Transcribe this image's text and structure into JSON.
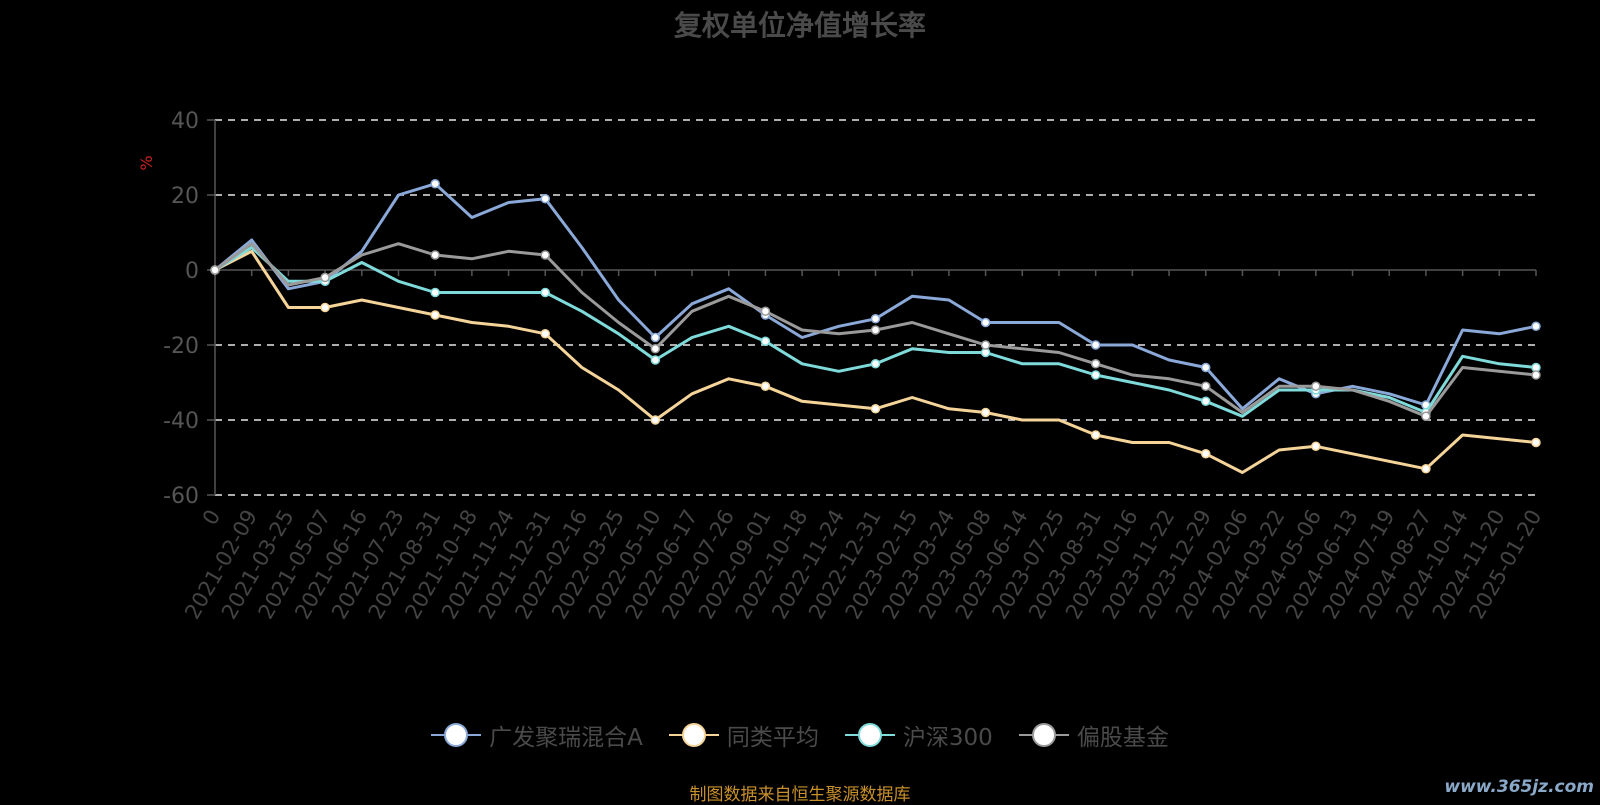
{
  "chart_data": {
    "type": "line",
    "title": "复权单位净值增长率",
    "ylabel": "%",
    "ylim": [
      -60,
      40
    ],
    "yticks": [
      40,
      20,
      0,
      -20,
      -40,
      -60
    ],
    "x": [
      "0",
      "2021-02-09",
      "2021-03-25",
      "2021-05-07",
      "2021-06-16",
      "2021-07-23",
      "2021-08-31",
      "2021-10-18",
      "2021-11-24",
      "2021-12-31",
      "2022-02-16",
      "2022-03-25",
      "2022-05-10",
      "2022-06-17",
      "2022-07-26",
      "2022-09-01",
      "2022-10-18",
      "2022-11-24",
      "2022-12-31",
      "2023-02-15",
      "2023-03-24",
      "2023-05-08",
      "2023-06-14",
      "2023-07-25",
      "2023-08-31",
      "2023-10-16",
      "2023-11-22",
      "2023-12-29",
      "2024-02-06",
      "2024-03-22",
      "2024-05-06",
      "2024-06-13",
      "2024-07-19",
      "2024-08-27",
      "2024-10-14",
      "2024-11-20",
      "2025-01-20"
    ],
    "grid": true,
    "legend_position": "bottom",
    "series": [
      {
        "name": "广发聚瑞混合A",
        "color": "#8aa8d8",
        "values": [
          0,
          8,
          -5,
          -3,
          5,
          20,
          23,
          14,
          18,
          19,
          6,
          -8,
          -18,
          -9,
          -5,
          -12,
          -18,
          -15,
          -13,
          -7,
          -8,
          -14,
          -14,
          -14,
          -20,
          -20,
          -24,
          -26,
          -37,
          -29,
          -33,
          -31,
          -33,
          -36,
          -16,
          -17,
          -15
        ]
      },
      {
        "name": "同类平均",
        "color": "#f5d49a",
        "values": [
          0,
          5,
          -10,
          -10,
          -8,
          -10,
          -12,
          -14,
          -15,
          -17,
          -26,
          -32,
          -40,
          -33,
          -29,
          -31,
          -35,
          -36,
          -37,
          -34,
          -37,
          -38,
          -40,
          -40,
          -44,
          -46,
          -46,
          -49,
          -54,
          -48,
          -47,
          -49,
          -51,
          -53,
          -44,
          -45,
          -46
        ]
      },
      {
        "name": "沪深300",
        "color": "#7fdada",
        "values": [
          0,
          6,
          -3,
          -3,
          2,
          -3,
          -6,
          -6,
          -6,
          -6,
          -11,
          -17,
          -24,
          -18,
          -15,
          -19,
          -25,
          -27,
          -25,
          -21,
          -22,
          -22,
          -25,
          -25,
          -28,
          -30,
          -32,
          -35,
          -39,
          -32,
          -32,
          -32,
          -34,
          -38,
          -23,
          -25,
          -26
        ]
      },
      {
        "name": "偏股基金",
        "color": "#9a9a9a",
        "values": [
          0,
          7,
          -4,
          -2,
          4,
          7,
          4,
          3,
          5,
          4,
          -6,
          -14,
          -21,
          -11,
          -7,
          -11,
          -16,
          -17,
          -16,
          -14,
          -17,
          -20,
          -21,
          -22,
          -25,
          -28,
          -29,
          -31,
          -38,
          -31,
          -31,
          -32,
          -35,
          -39,
          -26,
          -27,
          -28
        ]
      }
    ]
  },
  "legend_labels": [
    "广发聚瑞混合A",
    "同类平均",
    "沪深300",
    "偏股基金"
  ],
  "source_note": "制图数据来自恒生聚源数据库",
  "watermark": "www.365jz.com"
}
